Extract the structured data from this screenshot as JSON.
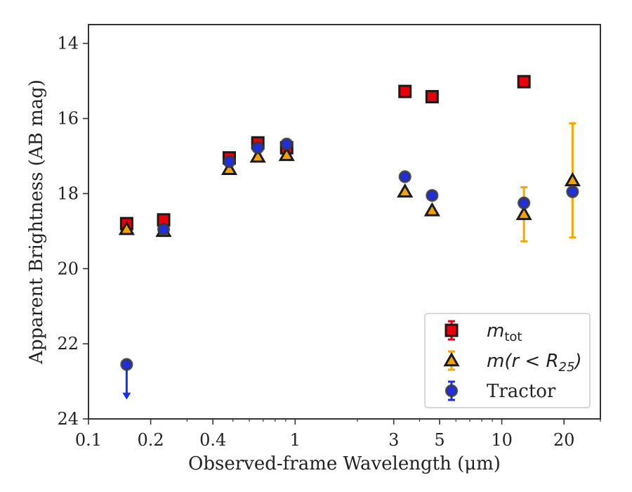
{
  "chart_data": {
    "type": "scatter",
    "xlabel": "Observed-frame Wavelength (μm)",
    "ylabel": "Apparent Brightness (AB mag)",
    "xscale": "log",
    "xlim": [
      0.1,
      30
    ],
    "ylim": [
      24,
      13.5
    ],
    "y_inverted": true,
    "xticks": [
      0.1,
      0.2,
      0.4,
      1,
      3,
      5,
      10,
      20
    ],
    "xtick_labels": [
      "0.1",
      "0.2",
      "0.4",
      "1",
      "3",
      "5",
      "10",
      "20"
    ],
    "yticks": [
      14,
      16,
      18,
      20,
      22,
      24
    ],
    "ytick_labels": [
      "14",
      "16",
      "18",
      "20",
      "22",
      "24"
    ],
    "grid": false,
    "legend_position": "lower-right",
    "series": [
      {
        "name": "m_tot",
        "marker": "square",
        "color": "#e8000b",
        "errcolor": "#e8000b",
        "points": [
          {
            "x": 0.153,
            "y": 18.8,
            "yerr": 0.05
          },
          {
            "x": 0.231,
            "y": 18.7,
            "yerr": 0.05
          },
          {
            "x": 0.48,
            "y": 17.05,
            "yerr": 0.05
          },
          {
            "x": 0.66,
            "y": 16.65,
            "yerr": 0.05
          },
          {
            "x": 0.91,
            "y": 16.78,
            "yerr": 0.05
          },
          {
            "x": 3.4,
            "y": 15.28,
            "yerr": 0.03
          },
          {
            "x": 4.6,
            "y": 15.42,
            "yerr": 0.03
          },
          {
            "x": 12.8,
            "y": 15.02,
            "yerr": 0.03
          }
        ]
      },
      {
        "name": "m(r < R_25)",
        "marker": "triangle",
        "color": "#f5a200",
        "errcolor": "#f5a700",
        "points": [
          {
            "x": 0.153,
            "y": 18.95,
            "yerr": 0.05
          },
          {
            "x": 0.231,
            "y": 19.0,
            "yerr": 0.05
          },
          {
            "x": 0.48,
            "y": 17.35,
            "yerr": 0.05
          },
          {
            "x": 0.66,
            "y": 17.02,
            "yerr": 0.05
          },
          {
            "x": 0.91,
            "y": 16.98,
            "yerr": 0.05
          },
          {
            "x": 3.4,
            "y": 17.95,
            "yerr": 0.05
          },
          {
            "x": 4.6,
            "y": 18.45,
            "yerr": 0.05
          },
          {
            "x": 12.8,
            "y": 18.55,
            "yerr": 0.72
          },
          {
            "x": 22.0,
            "y": 17.65,
            "yerr": 1.52
          }
        ]
      },
      {
        "name": "Tractor",
        "marker": "circle",
        "color": "#1f2fe0",
        "errcolor": "#1a2ef0",
        "points": [
          {
            "x": 0.153,
            "y": 22.55,
            "upper_limit": true,
            "arrow_to": 23.45
          },
          {
            "x": 0.231,
            "y": 18.95,
            "yerr": 0.05
          },
          {
            "x": 0.48,
            "y": 17.15,
            "yerr": 0.05
          },
          {
            "x": 0.66,
            "y": 16.78,
            "yerr": 0.05
          },
          {
            "x": 0.91,
            "y": 16.68,
            "yerr": 0.05
          },
          {
            "x": 3.4,
            "y": 17.55,
            "yerr": 0.05
          },
          {
            "x": 4.6,
            "y": 18.05,
            "yerr": 0.05
          },
          {
            "x": 12.8,
            "y": 18.25,
            "yerr": 0.05
          },
          {
            "x": 22.0,
            "y": 17.95,
            "yerr": 0.05
          }
        ]
      }
    ],
    "legend": {
      "entries": [
        {
          "marker": "square",
          "label_main": "m",
          "label_sub": "tot"
        },
        {
          "marker": "triangle",
          "label_main": "m(r < R",
          "label_sub": "25",
          "label_tail": ")"
        },
        {
          "marker": "circle",
          "label_main": "Tractor",
          "label_sub": "",
          "label_tail": ""
        }
      ]
    }
  }
}
